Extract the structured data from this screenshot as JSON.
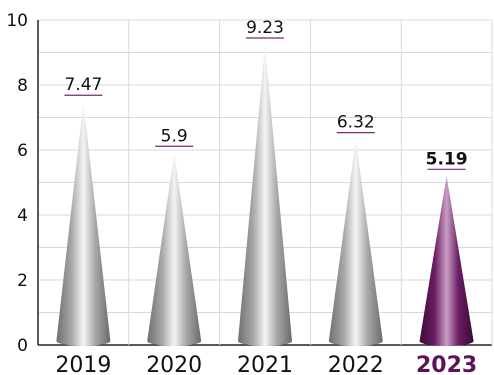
{
  "chart_data": {
    "type": "bar",
    "categories": [
      "2019",
      "2020",
      "2021",
      "2022",
      "2023"
    ],
    "values": [
      7.47,
      5.9,
      9.23,
      6.32,
      5.19
    ],
    "value_labels": [
      "7.47",
      "5.9",
      "9.23",
      "6.32",
      "5.19"
    ],
    "highlight_index": 4,
    "ylim": [
      0,
      10
    ],
    "y_ticks": [
      "0",
      "2",
      "4",
      "6",
      "8",
      "10"
    ],
    "grid": true,
    "title": "",
    "xlabel": "",
    "ylabel": "",
    "colors": {
      "bar": "#9e9e9e",
      "highlight": "#5b1556",
      "label_underline": "#7a2a72",
      "grid": "#d9d9d9",
      "axis": "#222222"
    }
  }
}
